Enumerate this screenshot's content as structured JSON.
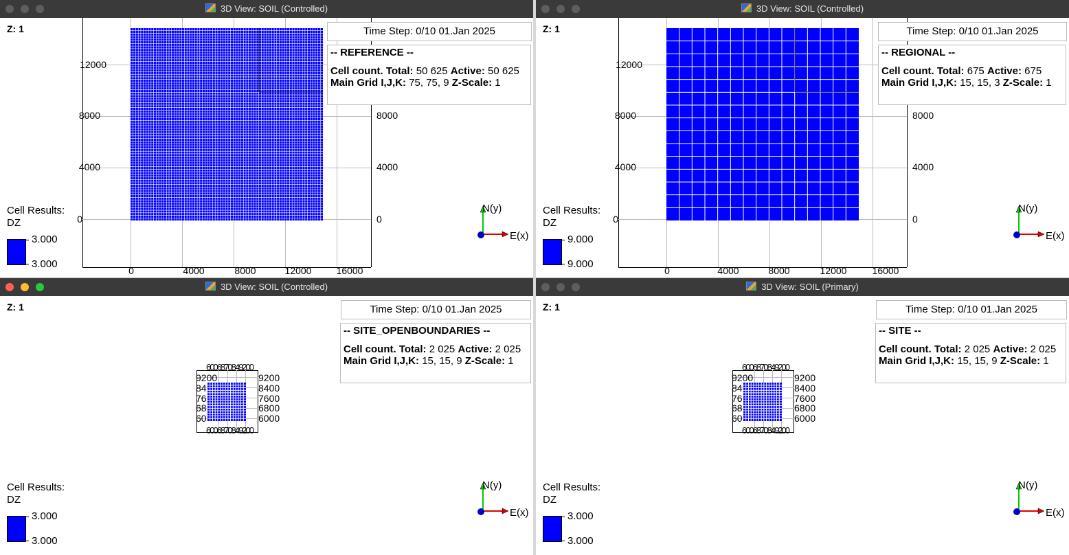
{
  "colors": {
    "grid_fill": "#0000ff",
    "title_bar": "#3a3a3a",
    "axis_y": "#00cc00",
    "axis_x": "#dd0000",
    "axis_z": "#0000cc"
  },
  "icons": {
    "window_controls": [
      "close-dot",
      "minimize-dot",
      "zoom-dot"
    ],
    "app": "resinsight-app-icon"
  },
  "axis_labels": {
    "north": "N(y)",
    "east": "E(x)"
  },
  "views": [
    {
      "title": "3D View: SOIL (Controlled)",
      "active": false,
      "z_label": "Z: 1",
      "time_step": "Time Step: 0/10 01.Jan 2025",
      "case_name": "-- REFERENCE --",
      "cell_count_label": "Cell count. Total:",
      "cell_total": "50 625",
      "active_label": "Active:",
      "cell_active": "50 625",
      "main_grid_label": "Main Grid I,J,K:",
      "main_grid": "75, 75, 9",
      "zscale_label": "Z-Scale:",
      "zscale": "1",
      "legend_title": "Cell Results:",
      "legend_var": "DZ",
      "legend_max": "3.000",
      "legend_min": "3.000",
      "x_ticks": [
        "0",
        "4000",
        "8000",
        "12000",
        "16000"
      ],
      "y_ticks": [
        "0",
        "4000",
        "8000",
        "12000"
      ],
      "grid_divisions": 75
    },
    {
      "title": "3D View: SOIL (Controlled)",
      "active": false,
      "z_label": "Z: 1",
      "time_step": "Time Step: 0/10 01.Jan 2025",
      "case_name": "-- REGIONAL --",
      "cell_count_label": "Cell count. Total:",
      "cell_total": "675",
      "active_label": "Active:",
      "cell_active": "675",
      "main_grid_label": "Main Grid I,J,K:",
      "main_grid": "15, 15, 3",
      "zscale_label": "Z-Scale:",
      "zscale": "1",
      "legend_title": "Cell Results:",
      "legend_var": "DZ",
      "legend_max": "9.000",
      "legend_min": "9.000",
      "x_ticks": [
        "0",
        "4000",
        "8000",
        "12000",
        "16000"
      ],
      "y_ticks": [
        "0",
        "4000",
        "8000",
        "12000"
      ],
      "grid_divisions": 15
    },
    {
      "title": "3D View: SOIL (Controlled)",
      "active": true,
      "z_label": "Z: 1",
      "time_step": "Time Step: 0/10 01.Jan 2025",
      "case_name": "-- SITE_OPENBOUNDARIES --",
      "cell_count_label": "Cell count. Total:",
      "cell_total": "2 025",
      "active_label": "Active:",
      "cell_active": "2 025",
      "main_grid_label": "Main Grid I,J,K:",
      "main_grid": "15, 15, 9",
      "zscale_label": "Z-Scale:",
      "zscale": "1",
      "legend_title": "Cell Results:",
      "legend_var": "DZ",
      "legend_max": "3.000",
      "legend_min": "3.000",
      "y_ticks_left": [
        "60",
        "68",
        "76",
        "84",
        "9200"
      ],
      "y_ticks_right": [
        "6000",
        "6800",
        "7600",
        "8400",
        "9200"
      ],
      "x_ticks_overlap": "6006870849200",
      "grid_divisions": 15
    },
    {
      "title": "3D View: SOIL (Primary)",
      "active": false,
      "z_label": "Z: 1",
      "time_step": "Time Step: 0/10 01.Jan 2025",
      "case_name": "-- SITE --",
      "cell_count_label": "Cell count. Total:",
      "cell_total": "2 025",
      "active_label": "Active:",
      "cell_active": "2 025",
      "main_grid_label": "Main Grid I,J,K:",
      "main_grid": "15, 15, 9",
      "zscale_label": "Z-Scale:",
      "zscale": "1",
      "legend_title": "Cell Results:",
      "legend_var": "DZ",
      "legend_max": "3.000",
      "legend_min": "3.000",
      "y_ticks_left": [
        "60",
        "68",
        "76",
        "84",
        "9200"
      ],
      "y_ticks_right": [
        "6000",
        "6800",
        "7600",
        "8400",
        "9200"
      ],
      "x_ticks_overlap": "6006870849200",
      "grid_divisions": 15
    }
  ]
}
